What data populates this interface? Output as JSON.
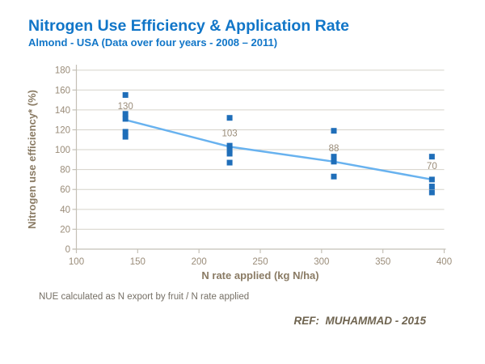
{
  "header": {
    "title": "Nitrogen Use Efficiency & Application Rate",
    "subtitle": "Almond - USA (Data over four years - 2008 – 2011)"
  },
  "chart_data": {
    "type": "scatter",
    "xlabel": "N rate applied (kg N/ha)",
    "ylabel": "Nitrogen use efficiency* (%)",
    "xlim": [
      100,
      400
    ],
    "ylim": [
      0,
      180
    ],
    "xticks": [
      100,
      150,
      200,
      250,
      300,
      350,
      400
    ],
    "yticks": [
      0,
      20,
      40,
      60,
      80,
      100,
      120,
      140,
      160,
      180
    ],
    "grid": "horizontal",
    "marker": "square",
    "legend": "none",
    "clusters": [
      {
        "x": 140,
        "values": [
          155,
          136,
          131,
          118,
          113
        ],
        "mean": 130,
        "label": "130"
      },
      {
        "x": 225,
        "values": [
          132,
          104,
          100,
          96,
          87
        ],
        "mean": 103,
        "label": "103"
      },
      {
        "x": 310,
        "values": [
          119,
          93,
          88,
          73
        ],
        "mean": 88,
        "label": "88"
      },
      {
        "x": 390,
        "values": [
          93,
          70,
          63,
          57
        ],
        "mean": 70,
        "label": "70"
      }
    ],
    "trend_points": [
      [
        140,
        130
      ],
      [
        225,
        103
      ],
      [
        310,
        88
      ],
      [
        390,
        70
      ]
    ]
  },
  "footnote": "NUE calculated as N export by fruit / N rate applied",
  "reference": "REF:  MUHAMMAD - 2015",
  "colors": {
    "title_blue": "#1176c8",
    "marker_blue": "#1f6eb9",
    "trend_blue": "#68b2ef",
    "tick_label": "#9a8c79",
    "axis_title": "#8a7b64",
    "grid": "#d6d3ca",
    "axis": "#c4c0b6",
    "footnote": "#756f65",
    "reference": "#6f6450"
  }
}
